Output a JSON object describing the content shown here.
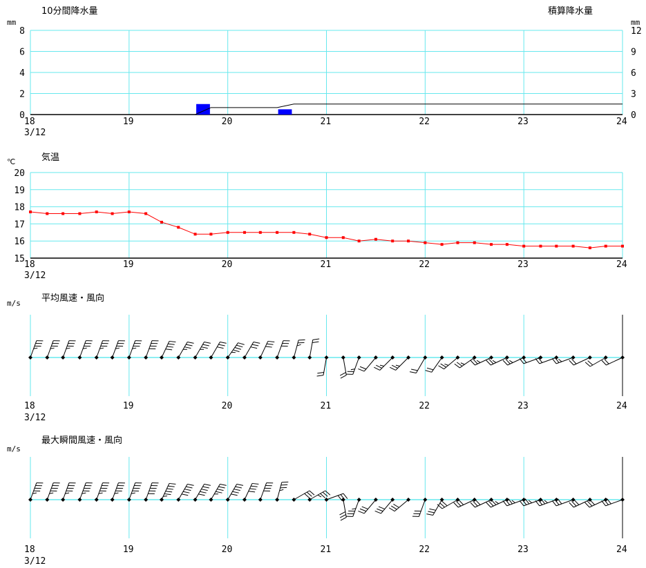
{
  "chart_data": [
    {
      "type": "bar",
      "title": "10分間降水量",
      "title_right": "積算降水量",
      "ylabel": "mm",
      "ylabel_right": "mm",
      "ylim": [
        0,
        8
      ],
      "yticks": [
        "0",
        "2",
        "4",
        "6",
        "8"
      ],
      "ylim_right": [
        0,
        12
      ],
      "yticks_right": [
        "0",
        "3",
        "6",
        "9",
        "12"
      ],
      "xlim": [
        18,
        24
      ],
      "xticks": [
        "18",
        "19",
        "20",
        "21",
        "22",
        "23",
        "24"
      ],
      "xdate": "3/12",
      "grid": true,
      "bars": [
        {
          "x": 19.75,
          "value": 1.0,
          "color": "#0000ff"
        },
        {
          "x": 20.58,
          "value": 0.5,
          "color": "#0000ff"
        }
      ],
      "cumulative": [
        {
          "x": 18.0,
          "y": 0
        },
        {
          "x": 19.67,
          "y": 0
        },
        {
          "x": 19.83,
          "y": 1.0
        },
        {
          "x": 20.5,
          "y": 1.0
        },
        {
          "x": 20.67,
          "y": 1.5
        },
        {
          "x": 24.0,
          "y": 1.5
        }
      ]
    },
    {
      "type": "line",
      "title": "気温",
      "ylabel": "℃",
      "ylim": [
        15,
        20
      ],
      "yticks": [
        "15",
        "16",
        "17",
        "18",
        "19",
        "20"
      ],
      "xlim": [
        18,
        24
      ],
      "xticks": [
        "18",
        "19",
        "20",
        "21",
        "22",
        "23",
        "24"
      ],
      "xdate": "3/12",
      "grid": true,
      "color": "#ff0000",
      "x": [
        18.0,
        18.17,
        18.33,
        18.5,
        18.67,
        18.83,
        19.0,
        19.17,
        19.33,
        19.5,
        19.67,
        19.83,
        20.0,
        20.17,
        20.33,
        20.5,
        20.67,
        20.83,
        21.0,
        21.17,
        21.33,
        21.5,
        21.67,
        21.83,
        22.0,
        22.17,
        22.33,
        22.5,
        22.67,
        22.83,
        23.0,
        23.17,
        23.33,
        23.5,
        23.67,
        23.83,
        24.0
      ],
      "y": [
        17.7,
        17.6,
        17.6,
        17.6,
        17.7,
        17.6,
        17.7,
        17.6,
        17.1,
        16.8,
        16.4,
        16.4,
        16.5,
        16.5,
        16.5,
        16.5,
        16.5,
        16.4,
        16.2,
        16.2,
        16.0,
        16.1,
        16.0,
        16.0,
        15.9,
        15.8,
        15.9,
        15.9,
        15.8,
        15.8,
        15.7,
        15.7,
        15.7,
        15.7,
        15.6,
        15.7,
        15.7
      ]
    },
    {
      "type": "wind",
      "title": "平均風速・風向",
      "ylabel": "m/s",
      "xlim": [
        18,
        24
      ],
      "xticks": [
        "18",
        "19",
        "20",
        "21",
        "22",
        "23",
        "24"
      ],
      "xdate": "3/12",
      "x": [
        18.0,
        18.17,
        18.33,
        18.5,
        18.67,
        18.83,
        19.0,
        19.17,
        19.33,
        19.5,
        19.67,
        19.83,
        20.0,
        20.17,
        20.33,
        20.5,
        20.67,
        20.83,
        21.0,
        21.17,
        21.33,
        21.5,
        21.67,
        21.83,
        22.0,
        22.17,
        22.33,
        22.5,
        22.67,
        22.83,
        23.0,
        23.17,
        23.33,
        23.5,
        23.67,
        23.83,
        24.0
      ],
      "direction_deg": [
        20,
        20,
        20,
        20,
        20,
        20,
        20,
        20,
        25,
        30,
        30,
        30,
        35,
        30,
        25,
        20,
        15,
        10,
        190,
        170,
        200,
        220,
        225,
        225,
        210,
        215,
        230,
        235,
        245,
        245,
        245,
        250,
        250,
        250,
        245,
        240,
        245
      ],
      "speed": [
        7,
        7,
        7,
        7,
        7,
        7,
        7,
        8,
        8,
        7,
        7,
        6,
        9,
        6,
        6,
        6,
        5,
        4,
        4,
        4,
        5,
        4,
        5,
        5,
        4,
        4,
        5,
        5,
        5,
        5,
        5,
        4,
        4,
        5,
        4,
        4,
        4
      ]
    },
    {
      "type": "wind",
      "title": "最大瞬間風速・風向",
      "ylabel": "m/s",
      "xlim": [
        18,
        24
      ],
      "xticks": [
        "18",
        "19",
        "20",
        "21",
        "22",
        "23",
        "24"
      ],
      "xdate": "3/12",
      "x": [
        18.0,
        18.17,
        18.33,
        18.5,
        18.67,
        18.83,
        19.0,
        19.17,
        19.33,
        19.5,
        19.67,
        19.83,
        20.0,
        20.17,
        20.33,
        20.5,
        20.67,
        20.83,
        21.0,
        21.17,
        21.33,
        21.5,
        21.67,
        21.83,
        22.0,
        22.17,
        22.33,
        22.5,
        22.67,
        22.83,
        23.0,
        23.17,
        23.33,
        23.5,
        23.67,
        23.83,
        24.0
      ],
      "direction_deg": [
        20,
        20,
        20,
        20,
        20,
        20,
        20,
        20,
        25,
        30,
        30,
        30,
        30,
        25,
        20,
        15,
        60,
        60,
        70,
        170,
        200,
        220,
        220,
        230,
        200,
        210,
        240,
        245,
        245,
        245,
        250,
        250,
        250,
        250,
        245,
        245,
        250
      ],
      "speed": [
        9,
        9,
        9,
        9,
        9,
        9,
        9,
        10,
        11,
        10,
        10,
        9,
        10,
        8,
        8,
        7,
        6,
        7,
        6,
        6,
        7,
        6,
        6,
        6,
        6,
        6,
        6,
        6,
        6,
        7,
        7,
        7,
        7,
        6,
        6,
        6,
        6
      ]
    }
  ]
}
